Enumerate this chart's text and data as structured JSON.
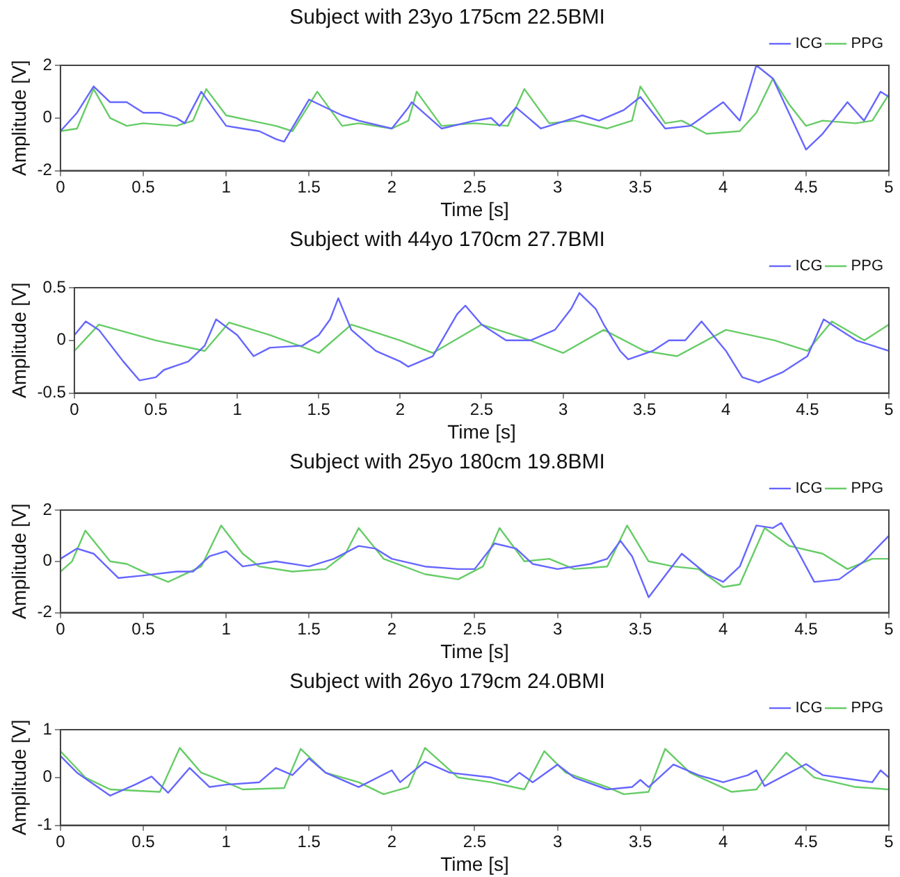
{
  "chart_data": [
    {
      "type": "line",
      "title": "Subject with 23yo 175cm 22.5BMI",
      "xlabel": "Time [s]",
      "ylabel": "Amplitude [V]",
      "xlim": [
        0,
        5
      ],
      "xticks": [
        0,
        0.5,
        1,
        1.5,
        2,
        2.5,
        3,
        3.5,
        4,
        4.5,
        5
      ],
      "ylim": [
        -2,
        2
      ],
      "yticks": [
        -2,
        0,
        2
      ],
      "legend": "top right",
      "marker": "none",
      "grid": false,
      "series": [
        {
          "name": "ICG",
          "color": "#6666ff",
          "x": [
            0,
            0.1,
            0.2,
            0.3,
            0.4,
            0.5,
            0.6,
            0.7,
            0.75,
            0.85,
            1.0,
            1.1,
            1.2,
            1.3,
            1.35,
            1.5,
            1.7,
            1.8,
            2.0,
            2.1,
            2.12,
            2.3,
            2.5,
            2.6,
            2.65,
            2.75,
            2.9,
            3.1,
            3.15,
            3.25,
            3.4,
            3.5,
            3.65,
            3.8,
            4.0,
            4.1,
            4.2,
            4.3,
            4.5,
            4.6,
            4.75,
            4.85,
            4.95,
            5.0
          ],
          "values": [
            -0.5,
            0.2,
            1.2,
            0.6,
            0.6,
            0.2,
            0.2,
            0.0,
            -0.2,
            1.0,
            -0.3,
            -0.4,
            -0.5,
            -0.8,
            -0.9,
            0.7,
            0.1,
            -0.1,
            -0.4,
            0.4,
            0.6,
            -0.4,
            -0.1,
            0.0,
            -0.3,
            0.4,
            -0.4,
            0.0,
            0.1,
            -0.1,
            0.3,
            0.8,
            -0.4,
            -0.3,
            0.6,
            -0.1,
            2.0,
            1.5,
            -1.2,
            -0.6,
            0.6,
            -0.1,
            1.0,
            0.8
          ]
        },
        {
          "name": "PPG",
          "color": "#66cc66",
          "x": [
            0,
            0.1,
            0.2,
            0.3,
            0.4,
            0.5,
            0.7,
            0.8,
            0.88,
            1.0,
            1.15,
            1.3,
            1.4,
            1.55,
            1.7,
            1.8,
            2.0,
            2.1,
            2.15,
            2.3,
            2.5,
            2.7,
            2.8,
            2.95,
            3.1,
            3.3,
            3.45,
            3.5,
            3.65,
            3.75,
            3.9,
            4.1,
            4.2,
            4.3,
            4.4,
            4.5,
            4.6,
            4.8,
            4.9,
            5.0
          ],
          "values": [
            -0.5,
            -0.4,
            1.1,
            0.0,
            -0.3,
            -0.2,
            -0.3,
            -0.1,
            1.1,
            0.1,
            -0.1,
            -0.3,
            -0.5,
            1.0,
            -0.3,
            -0.2,
            -0.4,
            -0.1,
            1.0,
            -0.3,
            -0.2,
            -0.3,
            1.1,
            -0.2,
            -0.1,
            -0.4,
            -0.1,
            1.2,
            -0.2,
            -0.1,
            -0.6,
            -0.5,
            0.2,
            1.5,
            0.5,
            -0.3,
            -0.1,
            -0.2,
            -0.1,
            0.9
          ]
        }
      ]
    },
    {
      "type": "line",
      "title": "Subject with 44yo 170cm 27.7BMI",
      "xlabel": "Time [s]",
      "ylabel": "Amplitude [V]",
      "xlim": [
        0,
        5
      ],
      "xticks": [
        0,
        0.5,
        1,
        1.5,
        2,
        2.5,
        3,
        3.5,
        4,
        4.5,
        5
      ],
      "ylim": [
        -0.5,
        0.5
      ],
      "yticks": [
        -0.5,
        0,
        0.5
      ],
      "legend": "top right",
      "marker": "none",
      "grid": false,
      "series": [
        {
          "name": "ICG",
          "color": "#6666ff",
          "x": [
            0,
            0.07,
            0.15,
            0.3,
            0.4,
            0.5,
            0.55,
            0.7,
            0.8,
            0.87,
            1.0,
            1.1,
            1.2,
            1.4,
            1.5,
            1.57,
            1.62,
            1.7,
            1.85,
            2.0,
            2.05,
            2.2,
            2.35,
            2.4,
            2.5,
            2.65,
            2.8,
            2.95,
            3.05,
            3.1,
            3.2,
            3.25,
            3.35,
            3.4,
            3.55,
            3.65,
            3.75,
            3.85,
            4.0,
            4.1,
            4.2,
            4.35,
            4.5,
            4.6,
            4.7,
            4.8,
            4.9,
            5.0
          ],
          "values": [
            0.05,
            0.18,
            0.1,
            -0.2,
            -0.38,
            -0.35,
            -0.28,
            -0.2,
            -0.05,
            0.2,
            0.05,
            -0.15,
            -0.07,
            -0.05,
            0.05,
            0.2,
            0.4,
            0.1,
            -0.1,
            -0.2,
            -0.25,
            -0.15,
            0.25,
            0.33,
            0.15,
            0.0,
            0.0,
            0.1,
            0.3,
            0.45,
            0.3,
            0.15,
            -0.1,
            -0.18,
            -0.1,
            0.0,
            0.0,
            0.18,
            -0.1,
            -0.35,
            -0.4,
            -0.3,
            -0.15,
            0.2,
            0.1,
            0.0,
            -0.05,
            -0.1
          ]
        },
        {
          "name": "PPG",
          "color": "#66cc66",
          "x": [
            0,
            0.15,
            0.5,
            0.8,
            0.95,
            1.2,
            1.5,
            1.7,
            2.0,
            2.2,
            2.5,
            2.8,
            3.0,
            3.25,
            3.5,
            3.7,
            4.0,
            4.3,
            4.5,
            4.65,
            4.85,
            5.0
          ],
          "values": [
            -0.1,
            0.15,
            0.0,
            -0.1,
            0.17,
            0.05,
            -0.12,
            0.15,
            0.0,
            -0.12,
            0.15,
            0.0,
            -0.12,
            0.1,
            -0.1,
            -0.15,
            0.1,
            0.0,
            -0.1,
            0.18,
            0.0,
            0.15
          ]
        }
      ]
    },
    {
      "type": "line",
      "title": "Subject with 25yo 180cm 19.8BMI",
      "xlabel": "Time [s]",
      "ylabel": "Amplitude [V]",
      "xlim": [
        0,
        5
      ],
      "xticks": [
        0,
        0.5,
        1,
        1.5,
        2,
        2.5,
        3,
        3.5,
        4,
        4.5,
        5
      ],
      "ylim": [
        -2,
        2
      ],
      "yticks": [
        -2,
        0,
        2
      ],
      "legend": "top right",
      "marker": "none",
      "grid": false,
      "series": [
        {
          "name": "ICG",
          "color": "#6666ff",
          "x": [
            0,
            0.1,
            0.2,
            0.35,
            0.5,
            0.7,
            0.8,
            0.9,
            1.0,
            1.1,
            1.3,
            1.5,
            1.65,
            1.8,
            1.9,
            2.0,
            2.2,
            2.4,
            2.5,
            2.62,
            2.75,
            2.85,
            3.0,
            3.2,
            3.3,
            3.38,
            3.45,
            3.55,
            3.75,
            3.9,
            4.0,
            4.1,
            4.2,
            4.3,
            4.35,
            4.45,
            4.55,
            4.7,
            4.85,
            5.0
          ],
          "values": [
            0.1,
            0.5,
            0.3,
            -0.65,
            -0.55,
            -0.4,
            -0.4,
            0.2,
            0.4,
            -0.2,
            0.0,
            -0.2,
            0.1,
            0.6,
            0.5,
            0.1,
            -0.2,
            -0.3,
            -0.3,
            0.7,
            0.5,
            -0.1,
            -0.3,
            -0.1,
            0.1,
            0.8,
            0.2,
            -1.4,
            0.3,
            -0.5,
            -0.8,
            -0.2,
            1.4,
            1.3,
            1.5,
            0.4,
            -0.8,
            -0.7,
            0.0,
            1.0
          ]
        },
        {
          "name": "PPG",
          "color": "#66cc66",
          "x": [
            0,
            0.07,
            0.15,
            0.3,
            0.4,
            0.5,
            0.65,
            0.85,
            0.97,
            1.1,
            1.2,
            1.4,
            1.6,
            1.72,
            1.8,
            1.95,
            2.2,
            2.4,
            2.55,
            2.65,
            2.8,
            2.95,
            3.1,
            3.3,
            3.42,
            3.55,
            3.7,
            3.85,
            4.0,
            4.1,
            4.25,
            4.4,
            4.6,
            4.75,
            4.9,
            5.0
          ],
          "values": [
            -0.4,
            0.0,
            1.2,
            0.0,
            -0.1,
            -0.4,
            -0.8,
            -0.2,
            1.4,
            0.3,
            -0.2,
            -0.4,
            -0.3,
            0.3,
            1.3,
            0.1,
            -0.5,
            -0.7,
            -0.2,
            1.3,
            0.0,
            0.1,
            -0.3,
            -0.2,
            1.4,
            0.0,
            -0.2,
            -0.3,
            -1.0,
            -0.9,
            1.3,
            0.6,
            0.3,
            -0.3,
            0.1,
            0.1
          ]
        }
      ]
    },
    {
      "type": "line",
      "title": "Subject with 26yo 179cm 24.0BMI",
      "xlabel": "Time [s]",
      "ylabel": "Amplitude [V]",
      "xlim": [
        0,
        5
      ],
      "xticks": [
        0,
        0.5,
        1,
        1.5,
        2,
        2.5,
        3,
        3.5,
        4,
        4.5,
        5
      ],
      "ylim": [
        -1,
        1
      ],
      "yticks": [
        -1,
        0,
        1
      ],
      "legend": "top right",
      "marker": "none",
      "grid": false,
      "series": [
        {
          "name": "ICG",
          "color": "#6666ff",
          "x": [
            0,
            0.1,
            0.3,
            0.45,
            0.55,
            0.65,
            0.78,
            0.9,
            1.0,
            1.2,
            1.3,
            1.4,
            1.5,
            1.6,
            1.8,
            2.0,
            2.05,
            2.2,
            2.35,
            2.6,
            2.7,
            2.77,
            2.85,
            3.0,
            3.1,
            3.3,
            3.45,
            3.5,
            3.55,
            3.7,
            3.85,
            4.0,
            4.15,
            4.2,
            4.25,
            4.5,
            4.6,
            4.8,
            4.9,
            4.95,
            5.0
          ],
          "values": [
            0.45,
            0.1,
            -0.38,
            -0.15,
            0.02,
            -0.32,
            0.2,
            -0.2,
            -0.15,
            -0.1,
            0.2,
            0.05,
            0.4,
            0.1,
            -0.2,
            0.15,
            -0.1,
            0.33,
            0.1,
            0.0,
            -0.1,
            0.1,
            -0.1,
            0.27,
            0.0,
            -0.25,
            -0.2,
            -0.05,
            -0.2,
            0.27,
            0.05,
            -0.1,
            0.05,
            0.15,
            -0.18,
            0.28,
            0.05,
            -0.05,
            -0.1,
            0.15,
            0.0
          ]
        },
        {
          "name": "PPG",
          "color": "#66cc66",
          "x": [
            0,
            0.15,
            0.3,
            0.6,
            0.72,
            0.85,
            1.0,
            1.1,
            1.35,
            1.45,
            1.6,
            1.8,
            1.95,
            2.1,
            2.2,
            2.4,
            2.6,
            2.8,
            2.92,
            3.05,
            3.3,
            3.4,
            3.55,
            3.65,
            3.8,
            4.05,
            4.2,
            4.38,
            4.55,
            4.8,
            5.0
          ],
          "values": [
            0.55,
            0.0,
            -0.25,
            -0.3,
            0.62,
            0.1,
            -0.1,
            -0.25,
            -0.22,
            0.6,
            0.1,
            -0.1,
            -0.35,
            -0.2,
            0.62,
            0.0,
            -0.1,
            -0.25,
            0.55,
            0.1,
            -0.2,
            -0.35,
            -0.3,
            0.6,
            0.1,
            -0.3,
            -0.25,
            0.52,
            0.0,
            -0.2,
            -0.25
          ]
        }
      ]
    }
  ]
}
